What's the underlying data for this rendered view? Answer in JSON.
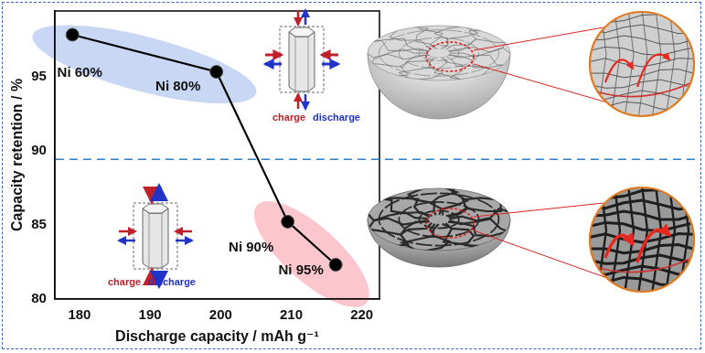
{
  "chart_data": {
    "type": "line",
    "x_label": "Discharge capacity / mAh g⁻¹",
    "y_label": "Capacity retention / %",
    "x": [
      179.0,
      199.4,
      209.5,
      216.3
    ],
    "values": [
      97.8,
      95.3,
      85.2,
      82.3
    ],
    "point_labels": [
      "Ni 60%",
      "Ni 80%",
      "Ni 90%",
      "Ni 95%"
    ],
    "color": "#000000",
    "marker": "circle",
    "line_style": "solid",
    "xlim": [
      176.5,
      222.5
    ],
    "xticks": [
      180,
      190,
      200,
      210,
      220
    ],
    "ylim": [
      80,
      99.4
    ],
    "yticks": [
      80,
      85,
      90,
      95
    ],
    "reference_line": 89.4,
    "annotations": [
      {
        "text": "charge",
        "color": "#c0202a"
      },
      {
        "text": "discharge",
        "color": "#2233c8"
      },
      {
        "text": "charge",
        "color": "#c0202a"
      },
      {
        "text": "discharge",
        "color": "#2233c8"
      }
    ],
    "grid": false,
    "legend": false
  }
}
